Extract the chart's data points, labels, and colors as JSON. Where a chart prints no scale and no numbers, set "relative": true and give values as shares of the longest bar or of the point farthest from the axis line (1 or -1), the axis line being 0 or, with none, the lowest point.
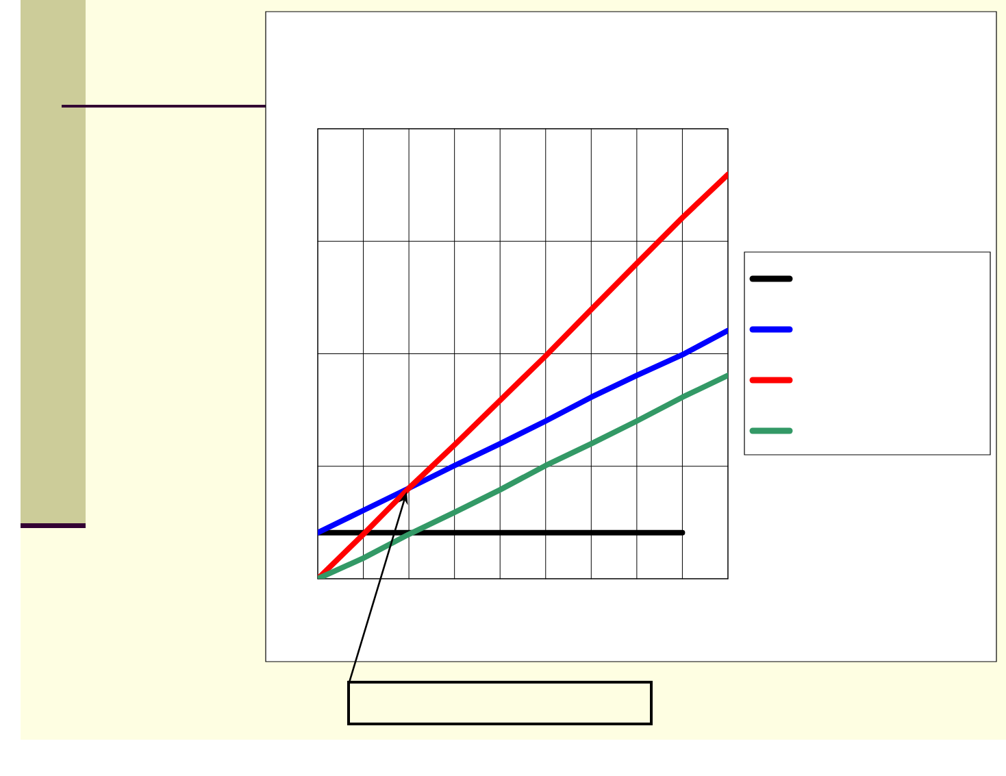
{
  "chart_data": {
    "type": "line",
    "relative": true,
    "categories": [
      null,
      null,
      null,
      null,
      null,
      null,
      null,
      null,
      null,
      null
    ],
    "grid": true,
    "marker": "none",
    "line_style": "solid",
    "series": [
      {
        "color": "#000000",
        "values": [
          0.114,
          0.114,
          0.114,
          0.114,
          0.114,
          0.114,
          0.114,
          0.114,
          0.114,
          null
        ]
      },
      {
        "color": "#0000ff",
        "values": [
          0.114,
          0.169,
          0.224,
          0.28,
          0.334,
          0.39,
          0.449,
          0.503,
          0.554,
          0.614
        ]
      },
      {
        "color": "#ff0000",
        "values": [
          0,
          0.11,
          0.224,
          0.331,
          0.441,
          0.551,
          0.666,
          0.78,
          0.893,
          1
        ]
      },
      {
        "color": "#339966",
        "values": [
          0,
          0.051,
          0.11,
          0.164,
          0.22,
          0.28,
          0.334,
          0.39,
          0.449,
          0.503
        ]
      }
    ]
  }
}
